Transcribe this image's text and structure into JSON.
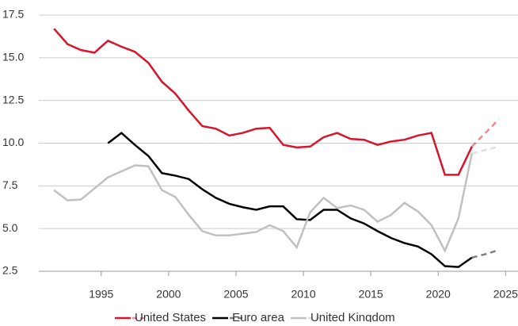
{
  "chart_data": {
    "type": "line",
    "x": [
      1991.5,
      1992.5,
      1993.5,
      1994.5,
      1995.5,
      1996.5,
      1997.5,
      1998.5,
      1999.5,
      2000.5,
      2001.5,
      2002.5,
      2003.5,
      2004.5,
      2005.5,
      2006.5,
      2007.5,
      2008.5,
      2009.5,
      2010.5,
      2011.5,
      2012.5,
      2013.5,
      2014.5,
      2015.5,
      2016.5,
      2017.5,
      2018.5,
      2019.5,
      2020.5,
      2021.5,
      2022.5
    ],
    "forecast_x": [
      2022.5,
      2023.5,
      2024.5
    ],
    "series": [
      {
        "name": "United States",
        "color": "#d7142a",
        "values": [
          16.7,
          15.8,
          15.45,
          15.3,
          16.0,
          15.65,
          15.35,
          14.7,
          13.6,
          12.9,
          11.9,
          11.0,
          10.85,
          10.45,
          10.6,
          10.85,
          10.9,
          9.9,
          9.75,
          9.8,
          10.35,
          10.6,
          10.25,
          10.2,
          9.9,
          10.1,
          10.2,
          10.45,
          10.6,
          8.15,
          8.15,
          9.8
        ],
        "forecast": [
          9.8,
          10.6,
          11.4
        ]
      },
      {
        "name": "Euro area",
        "color": "#000000",
        "values": [
          null,
          null,
          null,
          null,
          10.0,
          10.6,
          9.9,
          9.25,
          8.25,
          8.1,
          7.9,
          7.3,
          6.8,
          6.45,
          6.25,
          6.1,
          6.3,
          6.3,
          5.55,
          5.5,
          6.1,
          6.1,
          5.6,
          5.3,
          4.85,
          4.45,
          4.15,
          3.95,
          3.5,
          2.8,
          2.75,
          3.3
        ],
        "forecast": [
          3.3,
          3.5,
          3.75
        ]
      },
      {
        "name": "United Kingdom",
        "color": "#c0c0c0",
        "values": [
          7.25,
          6.65,
          6.7,
          7.35,
          8.0,
          8.35,
          8.7,
          8.65,
          7.25,
          6.85,
          5.8,
          4.85,
          4.6,
          4.6,
          4.7,
          4.8,
          5.2,
          4.85,
          3.9,
          5.95,
          6.8,
          6.2,
          6.35,
          6.1,
          5.4,
          5.8,
          6.5,
          6.0,
          5.2,
          3.7,
          5.6,
          9.4
        ],
        "forecast": [
          9.4,
          9.6,
          9.8
        ]
      }
    ],
    "xlim": [
      1990.37,
      2025.92
    ],
    "xticks": [
      1995,
      2000,
      2005,
      2010,
      2015,
      2020,
      2025
    ],
    "ylim": [
      2.5,
      17.5
    ],
    "yticks": [
      {
        "value": 2.5,
        "label": "2.5"
      },
      {
        "value": 5,
        "label": "5.0"
      },
      {
        "value": 7.5,
        "label": "7.5"
      },
      {
        "value": 10,
        "label": "10.0"
      },
      {
        "value": 12.5,
        "label": "12.5"
      },
      {
        "value": 15,
        "label": "15.0"
      },
      {
        "value": 17.5,
        "label": "17.5"
      }
    ],
    "grid": true
  }
}
